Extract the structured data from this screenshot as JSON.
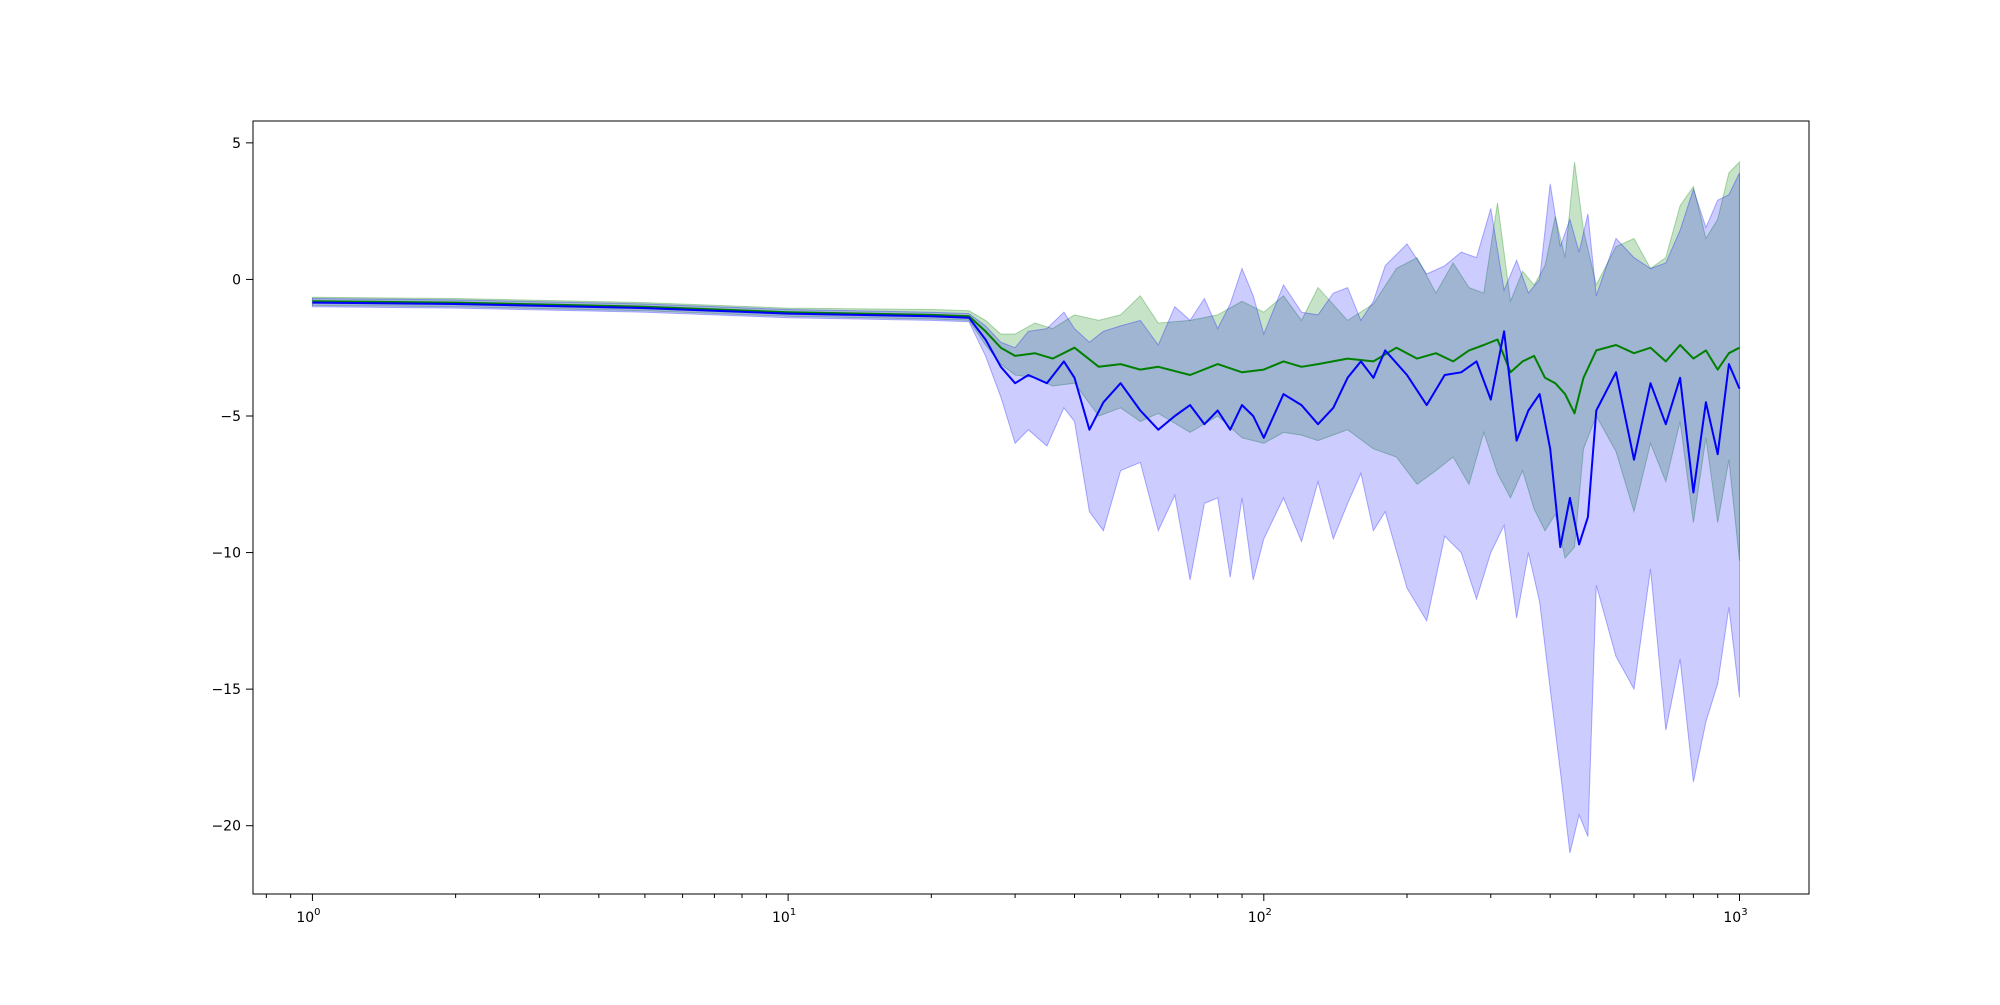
{
  "chart_data": {
    "type": "line",
    "title": "",
    "xlabel": "",
    "ylabel": "",
    "xscale": "log",
    "xlim": [
      0.75,
      1400
    ],
    "ylim": [
      -22.5,
      5.8
    ],
    "grid": false,
    "legend": "none",
    "x_ticks": [
      {
        "value": 1,
        "base": "10",
        "exp": "0"
      },
      {
        "value": 10,
        "base": "10",
        "exp": "1"
      },
      {
        "value": 100,
        "base": "10",
        "exp": "2"
      },
      {
        "value": 1000,
        "base": "10",
        "exp": "3"
      }
    ],
    "y_ticks": [
      {
        "value": 5,
        "label": "5"
      },
      {
        "value": 0,
        "label": "0"
      },
      {
        "value": -5,
        "label": "−5"
      },
      {
        "value": -10,
        "label": "−10"
      },
      {
        "value": -15,
        "label": "−15"
      },
      {
        "value": -20,
        "label": "−20"
      }
    ],
    "series": [
      {
        "color": "#008000",
        "band_color": "#008000",
        "band_opacity": 0.22,
        "x": [
          1,
          2,
          5,
          10,
          20,
          24,
          26,
          28,
          30,
          33,
          36,
          40,
          45,
          50,
          55,
          60,
          70,
          80,
          90,
          100,
          110,
          120,
          130,
          150,
          170,
          190,
          210,
          230,
          250,
          270,
          290,
          310,
          330,
          350,
          370,
          390,
          410,
          430,
          450,
          470,
          500,
          550,
          600,
          650,
          700,
          750,
          800,
          850,
          900,
          950,
          1000
        ],
        "y": [
          -0.8,
          -0.85,
          -1.0,
          -1.2,
          -1.3,
          -1.35,
          -1.9,
          -2.5,
          -2.8,
          -2.7,
          -2.9,
          -2.5,
          -3.2,
          -3.1,
          -3.3,
          -3.2,
          -3.5,
          -3.1,
          -3.4,
          -3.3,
          -3.0,
          -3.2,
          -3.1,
          -2.9,
          -3.0,
          -2.5,
          -2.9,
          -2.7,
          -3.0,
          -2.6,
          -2.4,
          -2.2,
          -3.4,
          -3.0,
          -2.8,
          -3.6,
          -3.8,
          -4.2,
          -4.9,
          -3.6,
          -2.6,
          -2.4,
          -2.7,
          -2.5,
          -3.0,
          -2.4,
          -2.9,
          -2.6,
          -3.3,
          -2.7,
          -2.5
        ],
        "upper": [
          -0.65,
          -0.7,
          -0.85,
          -1.05,
          -1.1,
          -1.15,
          -1.5,
          -2.0,
          -2.0,
          -1.6,
          -1.8,
          -1.3,
          -1.5,
          -1.3,
          -0.6,
          -1.6,
          -1.5,
          -1.3,
          -0.8,
          -1.2,
          -0.6,
          -1.5,
          -0.3,
          -1.5,
          -0.9,
          0.4,
          0.8,
          -0.5,
          0.6,
          -0.3,
          -0.5,
          2.8,
          -0.8,
          0.3,
          -0.2,
          0.5,
          2.3,
          0.8,
          4.3,
          1.8,
          -0.2,
          1.2,
          1.5,
          0.4,
          0.8,
          2.7,
          3.4,
          1.5,
          2.2,
          3.9,
          4.3
        ],
        "lower": [
          -0.95,
          -1.0,
          -1.15,
          -1.35,
          -1.45,
          -1.5,
          -2.4,
          -3.1,
          -3.5,
          -3.6,
          -3.9,
          -3.8,
          -5.0,
          -4.7,
          -5.2,
          -4.9,
          -5.6,
          -5.0,
          -5.8,
          -6.0,
          -5.6,
          -5.7,
          -5.9,
          -5.5,
          -6.2,
          -6.5,
          -7.5,
          -7.0,
          -6.5,
          -7.5,
          -5.6,
          -7.1,
          -8.0,
          -7.0,
          -8.4,
          -9.2,
          -8.6,
          -10.2,
          -9.8,
          -6.2,
          -5.0,
          -6.3,
          -8.5,
          -6.0,
          -7.4,
          -5.2,
          -8.9,
          -5.8,
          -8.9,
          -6.6,
          -10.3
        ]
      },
      {
        "color": "#0000ff",
        "band_color": "#0000ff",
        "band_opacity": 0.2,
        "x": [
          1,
          2,
          5,
          10,
          20,
          24,
          26,
          28,
          30,
          32,
          35,
          38,
          40,
          43,
          46,
          50,
          55,
          60,
          65,
          70,
          75,
          80,
          85,
          90,
          95,
          100,
          110,
          120,
          130,
          140,
          150,
          160,
          170,
          180,
          200,
          220,
          240,
          260,
          280,
          300,
          320,
          340,
          360,
          380,
          400,
          420,
          440,
          460,
          480,
          500,
          550,
          600,
          650,
          700,
          750,
          800,
          850,
          900,
          950,
          1000
        ],
        "y": [
          -0.85,
          -0.9,
          -1.05,
          -1.25,
          -1.35,
          -1.4,
          -2.2,
          -3.2,
          -3.8,
          -3.5,
          -3.8,
          -3.0,
          -3.6,
          -5.5,
          -4.5,
          -3.8,
          -4.8,
          -5.5,
          -5.0,
          -4.6,
          -5.3,
          -4.8,
          -5.5,
          -4.6,
          -5.0,
          -5.8,
          -4.2,
          -4.6,
          -5.3,
          -4.7,
          -3.6,
          -3.0,
          -3.6,
          -2.6,
          -3.5,
          -4.6,
          -3.5,
          -3.4,
          -3.0,
          -4.4,
          -1.9,
          -5.9,
          -4.8,
          -4.2,
          -6.2,
          -9.8,
          -8.0,
          -9.7,
          -8.7,
          -4.8,
          -3.4,
          -6.6,
          -3.8,
          -5.3,
          -3.6,
          -7.8,
          -4.5,
          -6.4,
          -3.1,
          -4.0
        ],
        "upper": [
          -0.7,
          -0.75,
          -0.9,
          -1.1,
          -1.2,
          -1.25,
          -1.7,
          -2.3,
          -2.5,
          -1.9,
          -1.8,
          -1.2,
          -1.8,
          -2.3,
          -1.9,
          -1.7,
          -1.5,
          -2.4,
          -1.0,
          -1.5,
          -0.7,
          -1.8,
          -0.9,
          0.4,
          -0.6,
          -2.0,
          -0.2,
          -1.2,
          -1.3,
          -0.5,
          -0.3,
          -1.5,
          -0.8,
          0.5,
          1.3,
          0.2,
          0.5,
          1.0,
          0.8,
          2.6,
          -0.4,
          0.7,
          -0.5,
          0.0,
          3.5,
          1.2,
          2.2,
          1.0,
          2.4,
          -0.6,
          1.5,
          0.8,
          0.4,
          0.6,
          1.8,
          3.3,
          1.9,
          2.9,
          3.1,
          3.9
        ],
        "lower": [
          -1.0,
          -1.05,
          -1.2,
          -1.4,
          -1.5,
          -1.55,
          -2.8,
          -4.3,
          -6.0,
          -5.5,
          -6.1,
          -4.7,
          -5.2,
          -8.5,
          -9.2,
          -7.0,
          -6.7,
          -9.2,
          -7.9,
          -11.0,
          -8.2,
          -8.0,
          -10.9,
          -8.0,
          -11.0,
          -9.5,
          -8.0,
          -9.6,
          -7.4,
          -9.5,
          -8.2,
          -7.1,
          -9.2,
          -8.5,
          -11.3,
          -12.5,
          -9.4,
          -10.0,
          -11.7,
          -10.0,
          -9.0,
          -12.4,
          -10.0,
          -11.8,
          -15.0,
          -18.0,
          -21.0,
          -19.6,
          -20.4,
          -11.2,
          -13.8,
          -15.0,
          -10.6,
          -16.5,
          -13.9,
          -18.4,
          -16.2,
          -14.8,
          -12.0,
          -15.3
        ]
      }
    ]
  }
}
